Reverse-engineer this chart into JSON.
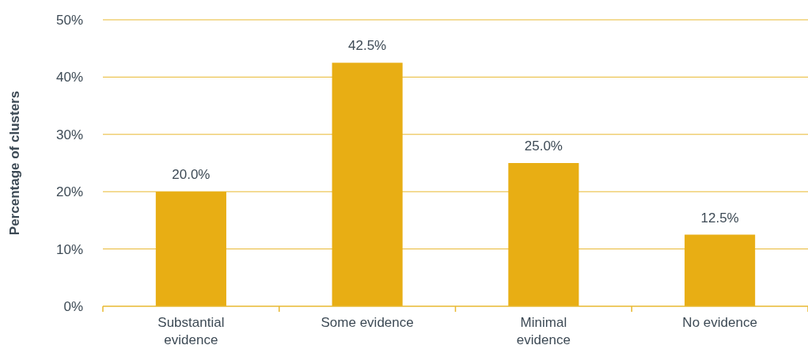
{
  "chart_data": {
    "type": "bar",
    "ylabel": "Percentage of clusters",
    "categories": [
      "Substantial evidence",
      "Some evidence",
      "Minimal evidence",
      "No evidence"
    ],
    "values": [
      20.0,
      42.5,
      25.0,
      12.5
    ],
    "value_labels": [
      "20.0%",
      "42.5%",
      "25.0%",
      "12.5%"
    ],
    "color": "#e8ae14",
    "ylim": [
      0,
      50
    ],
    "yticks": [
      {
        "value": 0,
        "label": "0%"
      },
      {
        "value": 10,
        "label": "10%"
      },
      {
        "value": 20,
        "label": "20%"
      },
      {
        "value": 30,
        "label": "30%"
      },
      {
        "value": 40,
        "label": "40%"
      },
      {
        "value": 50,
        "label": "50%"
      }
    ],
    "grid": "y"
  }
}
